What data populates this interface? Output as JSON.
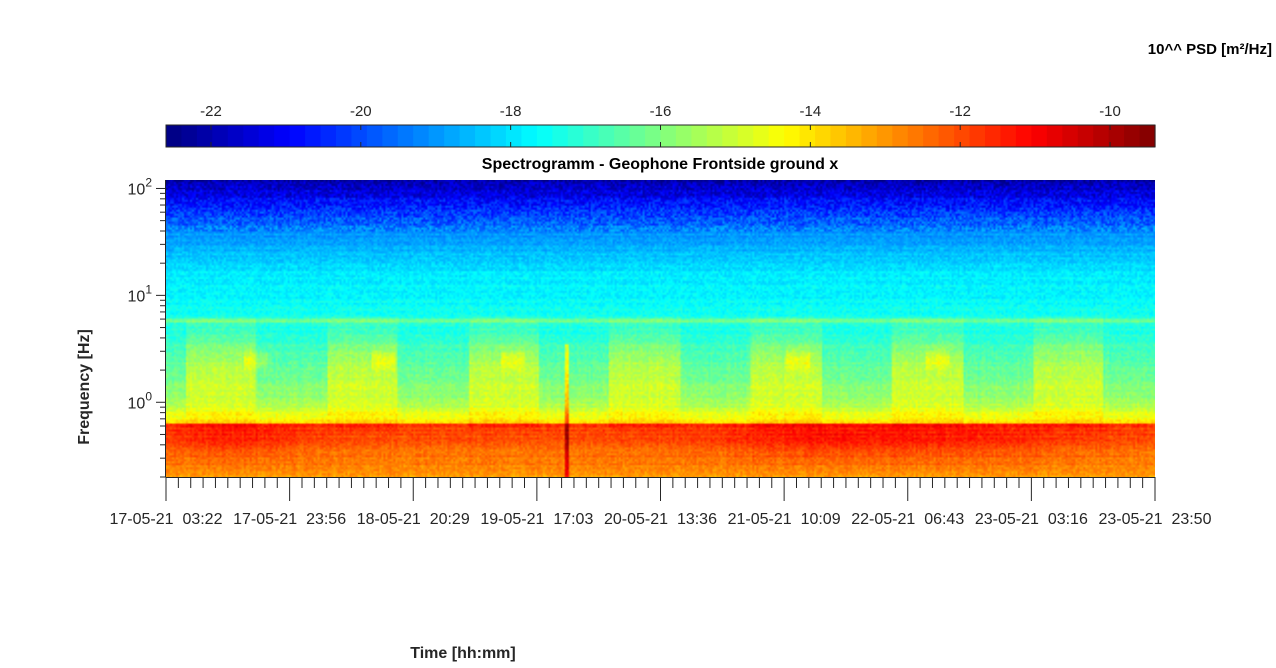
{
  "chart_data": {
    "type": "heatmap",
    "title": "Spectrogramm - Geophone Frontside ground x",
    "xlabel": "Time [hh:mm]",
    "ylabel": "Frequency [Hz]",
    "colorbar": {
      "label": "10^^ PSD [m²/Hz]",
      "colormap": "jet",
      "location": "top",
      "range": [
        -22.6,
        -9.4
      ],
      "ticks": [
        -22,
        -20,
        -18,
        -16,
        -14,
        -12,
        -10
      ],
      "tick_labels": [
        "-22",
        "-20",
        "-18",
        "-16",
        "-14",
        "-12",
        "-10"
      ]
    },
    "y_axis": {
      "scale": "log",
      "range": [
        0.2,
        120
      ],
      "major_ticks": [
        1,
        10,
        100
      ],
      "major_tick_labels": [
        {
          "base": "10",
          "exp": "0"
        },
        {
          "base": "10",
          "exp": "1"
        },
        {
          "base": "10",
          "exp": "2"
        }
      ]
    },
    "x_axis": {
      "tick_labels": [
        "17-05-21  03:22",
        "17-05-21  23:56",
        "18-05-21  20:29",
        "19-05-21  17:03",
        "20-05-21  13:36",
        "21-05-21  10:09",
        "22-05-21  06:43",
        "23-05-21  03:16",
        "23-05-21  23:50"
      ],
      "minor_ticks_between": 9
    },
    "features": {
      "persistent_line_hz": 5.8,
      "low_freq_band_hz": [
        0.2,
        0.8
      ],
      "transient_event_label": "19-05-21  17:03"
    },
    "grid": false
  },
  "colors": {
    "axis": "#262626",
    "background": "#ffffff"
  }
}
